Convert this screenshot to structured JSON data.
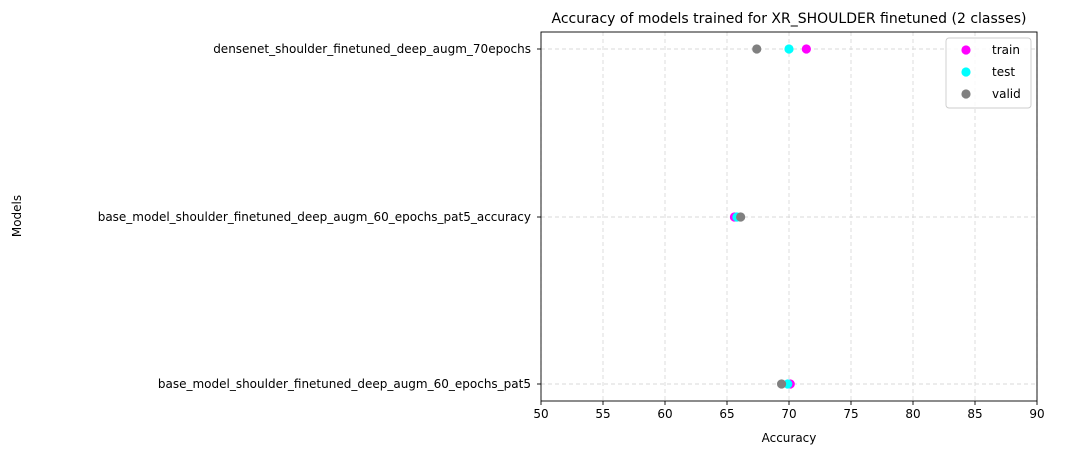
{
  "chart_data": {
    "type": "scatter",
    "title": "Accuracy of models trained for XR_SHOULDER finetuned (2 classes)",
    "xlabel": "Accuracy",
    "ylabel": "Models",
    "xlim": [
      50,
      90
    ],
    "xticks": [
      "50",
      "55",
      "60",
      "65",
      "70",
      "75",
      "80",
      "85",
      "90"
    ],
    "categories": [
      "base_model_shoulder_finetuned_deep_augm_60_epochs_pat5",
      "base_model_shoulder_finetuned_deep_augm_60_epochs_pat5_accuracy",
      "densenet_shoulder_finetuned_deep_augm_70epochs"
    ],
    "series": [
      {
        "name": "train",
        "color": "#ff00ff",
        "values": [
          70.1,
          65.6,
          71.4
        ]
      },
      {
        "name": "test",
        "color": "#00ffff",
        "values": [
          69.9,
          65.8,
          70.0
        ]
      },
      {
        "name": "valid",
        "color": "#808080",
        "values": [
          69.4,
          66.1,
          67.4
        ]
      }
    ],
    "grid": true,
    "legend_position": "top-right"
  }
}
